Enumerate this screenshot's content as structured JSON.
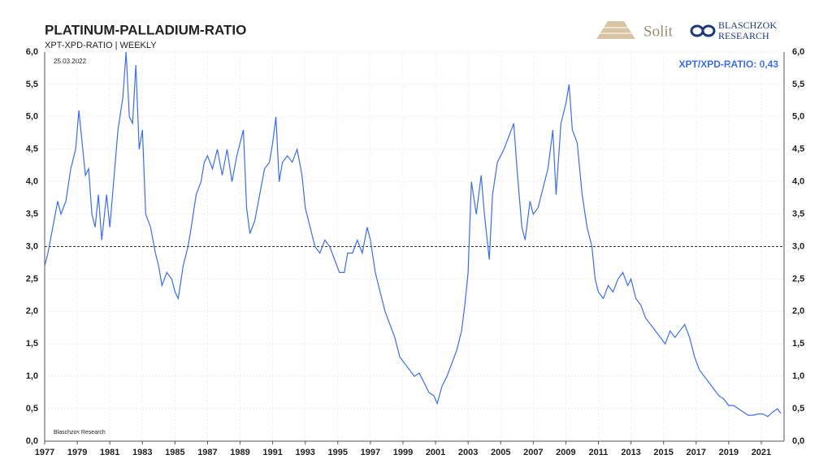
{
  "chart_data": {
    "type": "line",
    "title": "PLATINUM-PALLADIUM-RATIO",
    "subtitle": "XPT-XPD-RATIO | WEEKLY",
    "date": "25.03.2022",
    "source": "Blaschzok  Research",
    "logo_text": "Solit",
    "logo_text2": "BLASCHZOK",
    "logo_text3": "RESEARCH",
    "last_value_label": "XPT/XPD-RATIO: 0,43",
    "reference_line": 3,
    "grid": true,
    "xlim": [
      1977,
      2022.4
    ],
    "xticks": [
      1977,
      1979,
      1981,
      1983,
      1985,
      1987,
      1989,
      1991,
      1993,
      1995,
      1997,
      1999,
      2001,
      2003,
      2005,
      2007,
      2009,
      2011,
      2013,
      2015,
      2017,
      2019,
      2021
    ],
    "ylim": [
      0,
      6
    ],
    "yticks": [
      {
        "value": 0,
        "label": "0,0"
      },
      {
        "value": 0.5,
        "label": "0,5"
      },
      {
        "value": 1,
        "label": "1,0"
      },
      {
        "value": 1.5,
        "label": "1,5"
      },
      {
        "value": 2,
        "label": "2,0"
      },
      {
        "value": 2.5,
        "label": "2,5"
      },
      {
        "value": 3,
        "label": "3,0"
      },
      {
        "value": 3.5,
        "label": "3,5"
      },
      {
        "value": 4,
        "label": "4,0"
      },
      {
        "value": 4.5,
        "label": "4,5"
      },
      {
        "value": 5,
        "label": "5,0"
      },
      {
        "value": 5.5,
        "label": "5,5"
      },
      {
        "value": 6,
        "label": "6,0"
      }
    ],
    "x": [
      1977.0,
      1977.2,
      1977.5,
      1977.8,
      1978.0,
      1978.3,
      1978.6,
      1978.9,
      1979.1,
      1979.3,
      1979.5,
      1979.7,
      1979.9,
      1980.1,
      1980.3,
      1980.5,
      1980.8,
      1981.0,
      1981.3,
      1981.5,
      1981.8,
      1982.0,
      1982.2,
      1982.4,
      1982.6,
      1982.8,
      1983.0,
      1983.2,
      1983.5,
      1983.8,
      1984.0,
      1984.2,
      1984.5,
      1984.8,
      1985.0,
      1985.2,
      1985.5,
      1985.8,
      1986.0,
      1986.3,
      1986.6,
      1986.8,
      1987.0,
      1987.3,
      1987.6,
      1987.9,
      1988.2,
      1988.5,
      1988.8,
      1989.2,
      1989.4,
      1989.6,
      1989.9,
      1990.2,
      1990.5,
      1990.8,
      1991.0,
      1991.2,
      1991.4,
      1991.6,
      1991.9,
      1992.2,
      1992.5,
      1992.8,
      1993.0,
      1993.3,
      1993.6,
      1993.9,
      1994.2,
      1994.5,
      1994.8,
      1995.1,
      1995.4,
      1995.6,
      1995.9,
      1996.2,
      1996.5,
      1996.8,
      1997.0,
      1997.3,
      1997.6,
      1997.9,
      1998.2,
      1998.5,
      1998.8,
      1999.1,
      1999.4,
      1999.7,
      2000.0,
      2000.3,
      2000.6,
      2000.9,
      2001.1,
      2001.4,
      2001.7,
      2002.0,
      2002.3,
      2002.6,
      2002.8,
      2003.0,
      2003.2,
      2003.5,
      2003.8,
      2004.0,
      2004.3,
      2004.5,
      2004.8,
      2005.2,
      2005.5,
      2005.8,
      2006.0,
      2006.3,
      2006.5,
      2006.8,
      2007.0,
      2007.3,
      2007.6,
      2007.9,
      2008.2,
      2008.4,
      2008.7,
      2009.0,
      2009.2,
      2009.4,
      2009.7,
      2010.0,
      2010.3,
      2010.6,
      2010.8,
      2011.0,
      2011.3,
      2011.6,
      2011.9,
      2012.2,
      2012.5,
      2012.8,
      2013.0,
      2013.3,
      2013.6,
      2013.9,
      2014.2,
      2014.5,
      2014.8,
      2015.1,
      2015.4,
      2015.7,
      2016.0,
      2016.3,
      2016.6,
      2016.9,
      2017.2,
      2017.5,
      2017.8,
      2018.1,
      2018.4,
      2018.7,
      2019.0,
      2019.3,
      2019.6,
      2019.9,
      2020.2,
      2020.5,
      2020.8,
      2021.1,
      2021.4,
      2021.7,
      2022.0,
      2022.2
    ],
    "series": [
      {
        "name": "XPT/XPD-RATIO",
        "color": "#3a6ee8",
        "values": [
          2.7,
          2.9,
          3.3,
          3.7,
          3.5,
          3.7,
          4.2,
          4.5,
          5.1,
          4.6,
          4.1,
          4.2,
          3.5,
          3.3,
          3.8,
          3.1,
          3.8,
          3.3,
          4.2,
          4.8,
          5.3,
          6.0,
          5.0,
          4.9,
          5.8,
          4.5,
          4.8,
          3.5,
          3.3,
          2.9,
          2.7,
          2.4,
          2.6,
          2.5,
          2.3,
          2.2,
          2.7,
          3.0,
          3.3,
          3.8,
          4.0,
          4.3,
          4.4,
          4.2,
          4.5,
          4.1,
          4.5,
          4.0,
          4.4,
          4.8,
          3.6,
          3.2,
          3.4,
          3.8,
          4.2,
          4.3,
          4.6,
          5.0,
          4.0,
          4.3,
          4.4,
          4.3,
          4.5,
          4.1,
          3.6,
          3.3,
          3.0,
          2.9,
          3.1,
          3.0,
          2.8,
          2.6,
          2.6,
          2.9,
          2.9,
          3.1,
          2.9,
          3.3,
          3.1,
          2.6,
          2.3,
          2.0,
          1.8,
          1.6,
          1.3,
          1.2,
          1.1,
          1.0,
          1.05,
          0.9,
          0.75,
          0.7,
          0.58,
          0.85,
          1.0,
          1.2,
          1.4,
          1.7,
          2.1,
          2.6,
          4.0,
          3.5,
          4.1,
          3.5,
          2.8,
          3.8,
          4.3,
          4.5,
          4.7,
          4.9,
          4.2,
          3.3,
          3.1,
          3.7,
          3.5,
          3.6,
          3.9,
          4.2,
          4.8,
          3.8,
          4.9,
          5.2,
          5.5,
          4.8,
          4.6,
          3.8,
          3.3,
          3.0,
          2.5,
          2.3,
          2.2,
          2.4,
          2.3,
          2.5,
          2.6,
          2.4,
          2.5,
          2.2,
          2.1,
          1.9,
          1.8,
          1.7,
          1.6,
          1.5,
          1.7,
          1.6,
          1.7,
          1.8,
          1.6,
          1.3,
          1.1,
          1.0,
          0.9,
          0.8,
          0.7,
          0.65,
          0.55,
          0.55,
          0.5,
          0.45,
          0.4,
          0.4,
          0.42,
          0.42,
          0.38,
          0.45,
          0.5,
          0.43
        ]
      }
    ]
  }
}
